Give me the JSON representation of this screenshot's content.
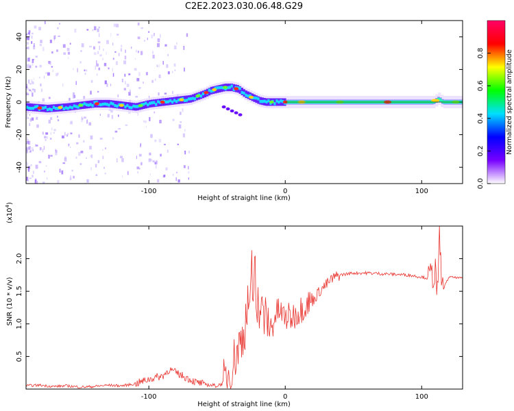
{
  "title": "C2E2.2023.030.06.48.G29",
  "chart_data": [
    {
      "type": "heatmap",
      "xlabel": "Height of straight line (km)",
      "ylabel": "Frequency (Hz)",
      "xlim": [
        -190,
        130
      ],
      "ylim": [
        -50,
        50
      ],
      "x_ticks": [
        -100,
        0,
        100
      ],
      "y_ticks": [
        -40,
        -20,
        0,
        20,
        40
      ],
      "grid": false,
      "ridge": {
        "x": [
          -190,
          -175,
          -160,
          -150,
          -140,
          -130,
          -120,
          -110,
          -100,
          -90,
          -80,
          -70,
          -60,
          -55,
          -50,
          -45,
          -40,
          -35,
          -30,
          -25,
          -20,
          -15,
          -10,
          -5,
          0,
          10,
          20,
          40,
          60,
          80,
          100,
          105,
          108,
          110,
          112,
          115,
          120,
          130
        ],
        "y": [
          -3,
          -4,
          -3,
          -2,
          -1,
          -1,
          -2,
          -3,
          -1,
          0,
          1,
          2,
          5,
          7,
          8,
          9,
          9,
          8,
          5,
          3,
          1,
          0,
          0,
          0,
          0,
          0,
          0,
          0,
          0,
          0,
          0,
          0,
          0,
          1,
          2,
          0,
          0,
          0
        ]
      },
      "colorbar": {
        "label": "Normalized spectral amplitude",
        "range": [
          0,
          1
        ],
        "ticks": [
          "0.0",
          "0.2",
          "0.4",
          "0.6",
          "0.8"
        ],
        "colors": [
          "#ffffff",
          "#7700ff",
          "#0000ff",
          "#00e0ff",
          "#00ff00",
          "#ffff00",
          "#ff0000",
          "#ff0066"
        ]
      }
    },
    {
      "type": "line",
      "xlabel": "Height of straight line (km)",
      "ylabel": "SNR (10 * v/v)",
      "y_scale_label": "(x10",
      "y_scale_exponent": "4",
      "xlim": [
        -190,
        130
      ],
      "ylim": [
        0,
        2.5
      ],
      "x_ticks": [
        -100,
        0,
        100
      ],
      "y_ticks": [
        "0.5",
        "1.0",
        "1.5",
        "2.0"
      ],
      "grid": false,
      "series": [
        {
          "color": "#e8302b",
          "x": [
            -190,
            -180,
            -170,
            -160,
            -150,
            -140,
            -130,
            -120,
            -110,
            -100,
            -95,
            -90,
            -85,
            -80,
            -75,
            -70,
            -65,
            -60,
            -55,
            -50,
            -45,
            -40,
            -35,
            -30,
            -28,
            -25,
            -22,
            -20,
            -18,
            -15,
            -12,
            -10,
            -8,
            -5,
            0,
            5,
            10,
            15,
            20,
            25,
            30,
            35,
            40,
            50,
            60,
            70,
            80,
            90,
            100,
            105,
            108,
            110,
            112,
            113,
            115,
            120,
            125,
            130
          ],
          "y": [
            0.05,
            0.06,
            0.04,
            0.05,
            0.03,
            0.04,
            0.06,
            0.05,
            0.08,
            0.15,
            0.18,
            0.2,
            0.3,
            0.25,
            0.2,
            0.15,
            0.1,
            0.08,
            0.06,
            0.05,
            0.1,
            0.3,
            0.6,
            0.9,
            1.2,
            1.5,
            1.6,
            1.3,
            1.2,
            1.1,
            1.0,
            0.9,
            1.1,
            1.2,
            1.1,
            1.1,
            1.2,
            1.3,
            1.35,
            1.5,
            1.6,
            1.7,
            1.75,
            1.78,
            1.78,
            1.77,
            1.76,
            1.75,
            1.72,
            1.7,
            1.75,
            1.8,
            1.4,
            2.4,
            1.5,
            1.72,
            1.71,
            1.7
          ]
        }
      ]
    }
  ]
}
